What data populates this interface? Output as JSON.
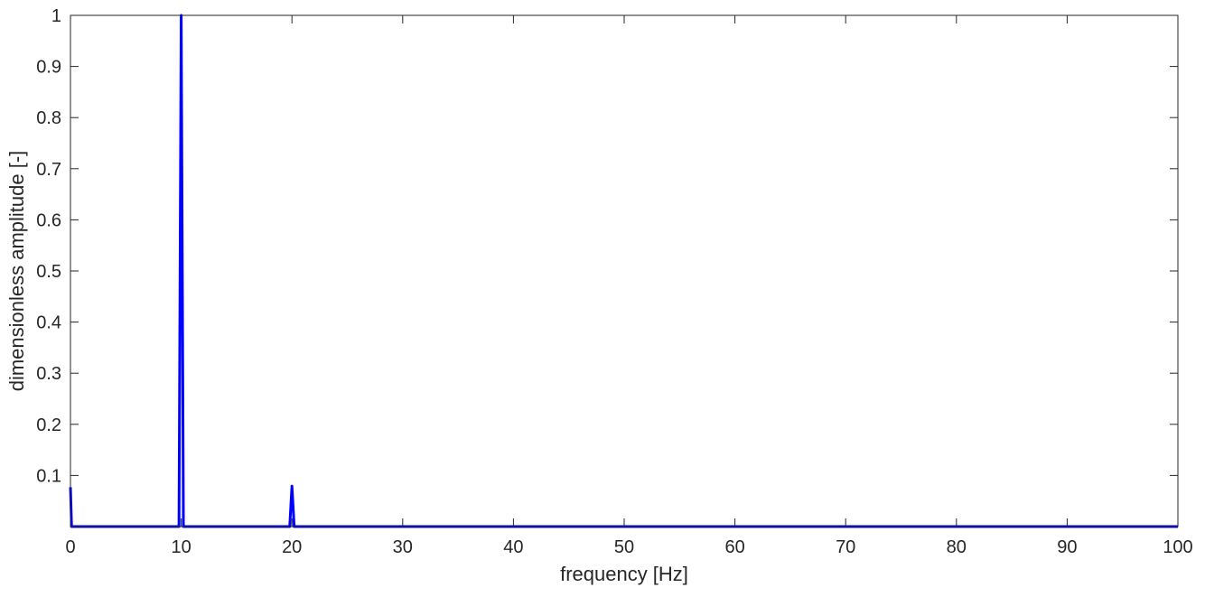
{
  "chart_data": {
    "type": "line",
    "title": "",
    "xlabel": "frequency [Hz]",
    "ylabel": "dimensionless amplitude [-]",
    "xlim": [
      0,
      100
    ],
    "ylim": [
      0,
      1
    ],
    "xticks": [
      0,
      10,
      20,
      30,
      40,
      50,
      60,
      70,
      80,
      90,
      100
    ],
    "xtick_labels": [
      "0",
      "10",
      "20",
      "30",
      "40",
      "50",
      "60",
      "70",
      "80",
      "90",
      "100"
    ],
    "yticks": [
      0.1,
      0.2,
      0.3,
      0.4,
      0.5,
      0.6,
      0.7,
      0.8,
      0.9,
      1
    ],
    "ytick_labels": [
      "0.1",
      "0.2",
      "0.3",
      "0.4",
      "0.5",
      "0.6",
      "0.7",
      "0.8",
      "0.9",
      "1"
    ],
    "grid": false,
    "box": true,
    "series": [
      {
        "color": "#0000ff",
        "x": [
          0,
          0.1,
          9.8,
          9.9,
          10.0,
          10.1,
          10.2,
          19.8,
          19.9,
          20.0,
          20.1,
          20.2,
          100
        ],
        "y": [
          0.077,
          0,
          0,
          0.5,
          1.0,
          0.5,
          0,
          0,
          0.04,
          0.079,
          0.04,
          0,
          0
        ]
      }
    ]
  }
}
